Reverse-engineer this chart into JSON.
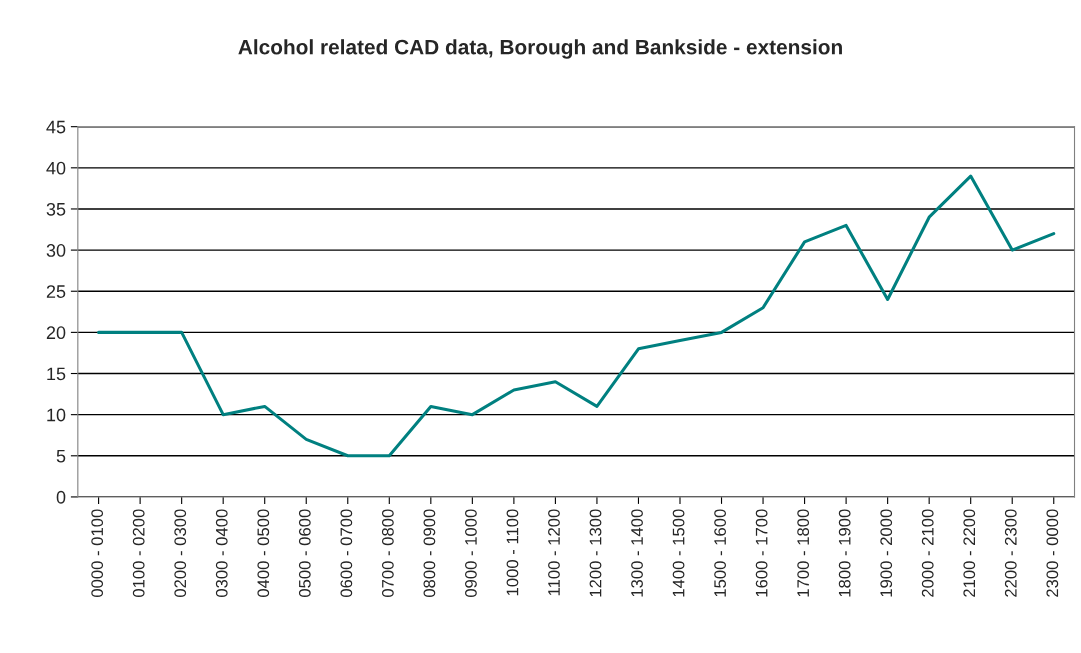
{
  "chart_data": {
    "type": "line",
    "title": "Alcohol related CAD data, Borough and Bankside - extension",
    "categories": [
      "0000 - 0100",
      "0100 - 0200",
      "0200 - 0300",
      "0300 - 0400",
      "0400 - 0500",
      "0500 - 0600",
      "0600 - 0700",
      "0700 - 0800",
      "0800 - 0900",
      "0900 - 1000",
      "1000 - 1100",
      "1100 - 1200",
      "1200 - 1300",
      "1300 - 1400",
      "1400 - 1500",
      "1500 - 1600",
      "1600 - 1700",
      "1700 - 1800",
      "1800 - 1900",
      "1900 - 2000",
      "2000 - 2100",
      "2100 - 2200",
      "2200 - 2300",
      "2300 - 0000"
    ],
    "series": [
      {
        "color": "#008080",
        "values": [
          20,
          20,
          20,
          10,
          11,
          7,
          5,
          5,
          11,
          10,
          13,
          14,
          11,
          18,
          19,
          20,
          23,
          31,
          33,
          24,
          34,
          39,
          30,
          32
        ]
      }
    ],
    "ylim": [
      0,
      45
    ],
    "yticks": [
      0,
      5,
      10,
      15,
      20,
      25,
      30,
      35,
      40,
      45
    ],
    "grid": "y",
    "legend": false
  }
}
